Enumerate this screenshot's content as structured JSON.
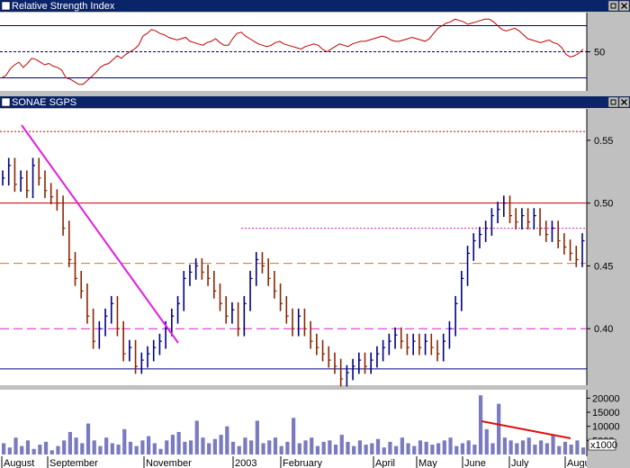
{
  "panes": {
    "rsi": {
      "title": "Relative Strength Index"
    },
    "price": {
      "title": "SONAE SGPS"
    }
  },
  "colors": {
    "title_bar": "#0a246a",
    "rsi_line": "#c00000",
    "guide_blue": "#000080",
    "up_bar": "#000080",
    "down_bar": "#8b2500",
    "trendline": "#e020e0",
    "volume": "#7a7ac0",
    "volume_trend": "#e01010",
    "resistance": "#c00000",
    "support_orange": "#e07020",
    "support_magenta": "#d020d0"
  },
  "chart_data": [
    {
      "type": "line",
      "name": "Relative Strength Index",
      "ylim": [
        20,
        80
      ],
      "y_ticks": [
        "50"
      ],
      "levels": [
        70,
        50,
        30
      ],
      "values": [
        30,
        32,
        37,
        40,
        42,
        38,
        41,
        45,
        44,
        42,
        40,
        41,
        39,
        38,
        36,
        30,
        29,
        27,
        25,
        25,
        28,
        31,
        34,
        38,
        40,
        41,
        44,
        47,
        45,
        48,
        50,
        52,
        55,
        62,
        64,
        67,
        66,
        64,
        63,
        61,
        60,
        59,
        60,
        61,
        58,
        57,
        56,
        55,
        57,
        58,
        60,
        57,
        55,
        55,
        60,
        64,
        65,
        62,
        60,
        58,
        56,
        55,
        54,
        55,
        57,
        58,
        56,
        55,
        54,
        53,
        52,
        54,
        55,
        56,
        55,
        52,
        50,
        52,
        54,
        56,
        55,
        54,
        56,
        57,
        58,
        58,
        59,
        60,
        61,
        62,
        61,
        59,
        58,
        58,
        59,
        60,
        61,
        60,
        59,
        58,
        60,
        64,
        68,
        70,
        72,
        73,
        75,
        74,
        73,
        71,
        72,
        73,
        74,
        75,
        75,
        73,
        70,
        67,
        66,
        67,
        68,
        66,
        63,
        60,
        59,
        58,
        57,
        58,
        59,
        57,
        56,
        53,
        48,
        46,
        47,
        49,
        52
      ]
    },
    {
      "type": "ohlc",
      "name": "SONAE SGPS",
      "ylim": [
        0.355,
        0.575
      ],
      "y_ticks": [
        "0.55",
        "0.50",
        "0.45",
        "0.40"
      ],
      "x_labels": [
        "August",
        "September",
        "November",
        "2003",
        "February",
        "April",
        "May",
        "June",
        "July",
        "Augu"
      ],
      "close": [
        0.52,
        0.53,
        0.515,
        0.52,
        0.51,
        0.53,
        0.52,
        0.51,
        0.505,
        0.5,
        0.48,
        0.455,
        0.44,
        0.43,
        0.41,
        0.39,
        0.4,
        0.41,
        0.42,
        0.4,
        0.38,
        0.385,
        0.37,
        0.375,
        0.38,
        0.385,
        0.39,
        0.4,
        0.41,
        0.42,
        0.44,
        0.445,
        0.45,
        0.445,
        0.44,
        0.43,
        0.42,
        0.41,
        0.415,
        0.4,
        0.42,
        0.44,
        0.455,
        0.45,
        0.44,
        0.43,
        0.42,
        0.41,
        0.4,
        0.41,
        0.4,
        0.39,
        0.385,
        0.38,
        0.375,
        0.37,
        0.36,
        0.365,
        0.37,
        0.375,
        0.37,
        0.375,
        0.38,
        0.385,
        0.39,
        0.395,
        0.39,
        0.385,
        0.39,
        0.385,
        0.39,
        0.385,
        0.38,
        0.39,
        0.4,
        0.42,
        0.44,
        0.46,
        0.47,
        0.475,
        0.48,
        0.49,
        0.495,
        0.5,
        0.49,
        0.485,
        0.49,
        0.485,
        0.49,
        0.48,
        0.475,
        0.48,
        0.47,
        0.465,
        0.46,
        0.455,
        0.47
      ],
      "bar_colors": "up/down alternating navy and dark red",
      "lines": {
        "resistance": 0.5,
        "dotted_top": 0.557,
        "orange_dashed": 0.452,
        "magenta_dashed": 0.4,
        "support_blue": 0.368,
        "dotted_mid": 0.48
      }
    },
    {
      "type": "bar",
      "name": "Volume",
      "ylim": [
        0,
        23000
      ],
      "y_ticks": [
        "20000",
        "15000",
        "10000",
        "5000"
      ],
      "unit_label": "x1000",
      "values": [
        4000,
        2500,
        6000,
        3000,
        5000,
        2000,
        3500,
        4500,
        1500,
        3000,
        5000,
        8000,
        6000,
        4000,
        11000,
        5000,
        3000,
        6000,
        4000,
        3500,
        9000,
        4500,
        3000,
        5000,
        6500,
        4000,
        2000,
        5000,
        7000,
        8000,
        4500,
        5000,
        12000,
        6000,
        4000,
        5500,
        7000,
        10000,
        4500,
        3000,
        6000,
        5000,
        12000,
        4000,
        5000,
        6000,
        3000,
        4500,
        13000,
        4000,
        5000,
        6000,
        3000,
        4500,
        5000,
        3500,
        7000,
        4500,
        3000,
        5000,
        3500,
        4000,
        5500,
        2500,
        4500,
        3000,
        6000,
        4000,
        3000,
        5000,
        4500,
        3500,
        4000,
        5000,
        6000,
        3000,
        4000,
        5000,
        3500,
        21000,
        9000,
        4000,
        18000,
        6000,
        5000,
        4000,
        5000,
        6000,
        3500,
        5000,
        4000,
        7000,
        3000,
        4500,
        3500,
        5000,
        2500
      ]
    }
  ]
}
